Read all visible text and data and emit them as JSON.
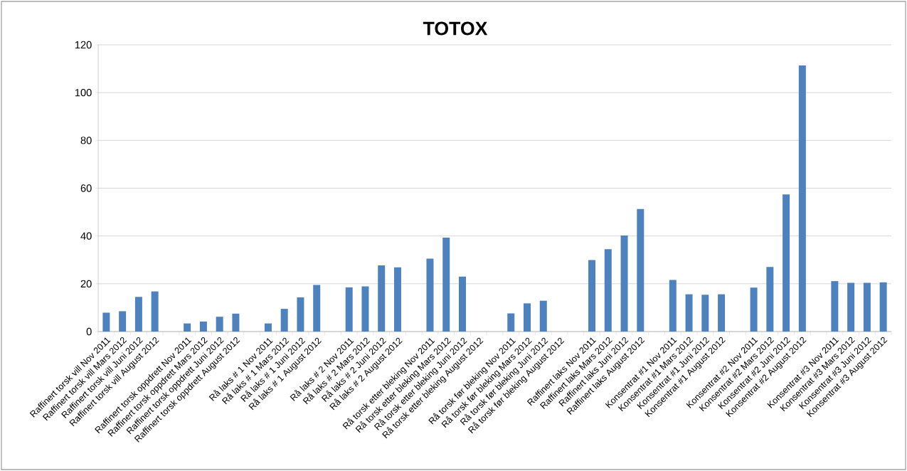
{
  "chart_data": {
    "type": "bar",
    "title": "TOTOX",
    "categories": [
      "Raffinert torsk vill Nov 2011",
      "Raffinert torsk vill Mars 2012",
      "Raffinert torsk vill Juni 2012",
      "Raffinert torsk vill August 2012",
      null,
      "Raffinert torsk oppdrett Nov 2011",
      "Raffinert torsk oppdrett Mars 2012",
      "Raffinert torsk oppdrett Juni 2012",
      "Raffinert torsk oppdrett August 2012",
      null,
      "Rå laks # 1   Nov 2011",
      "Rå laks # 1   Mars 2012",
      "Rå laks # 1   Juni 2012",
      "Rå laks # 1   August 2012",
      null,
      "Rå laks # 2   Nov 2011",
      "Rå laks # 2   Mars 2012",
      "Rå laks # 2   Juni 2012",
      "Rå laks # 2   August 2012",
      null,
      "Rå torsk etter bleking Nov 2011",
      "Rå torsk etter bleking Mars 2012",
      "Rå torsk etter bleking Juni 2012",
      "Rå torsk etter bleking August 2012",
      null,
      "Rå torsk før bleking Nov 2011",
      "Rå torsk før bleking Mars 2012",
      "Rå torsk før bleking Juni 2012",
      "Rå torsk før bleking August 2012",
      null,
      "Raffinert laks Nov 2011",
      "Raffinert laks Mars 2012",
      "Raffinert laks Juni 2012",
      "Raffinert laks August 2012",
      null,
      "Konsentrat #1 Nov 2011",
      "Konsentrat #1 Mars 2012",
      "Konsentrat #1 Juni 2012",
      "Konsentrat #1 August 2012",
      null,
      "Konsentrat #2 Nov 2011",
      "Konsentrat #2 Mars 2012",
      "Konsentrat #2 Juni 2012",
      "Konsentrat #2 August 2012",
      null,
      "Konsentrat #3 Nov 2011",
      "Konsentrat #3 Mars 2012",
      "Konsentrat #3 Juni 2012",
      "Konsentrat #3 August 2012"
    ],
    "values": [
      7.9,
      8.5,
      14.5,
      16.8,
      null,
      3.4,
      4.2,
      6.2,
      7.5,
      null,
      3.4,
      9.5,
      14.3,
      19.5,
      null,
      18.5,
      18.9,
      27.7,
      26.9,
      null,
      30.5,
      39.3,
      23.0,
      null,
      null,
      7.6,
      11.8,
      12.9,
      null,
      null,
      29.9,
      34.5,
      40.2,
      51.3,
      null,
      21.6,
      15.6,
      15.4,
      15.6,
      null,
      18.4,
      27.0,
      57.4,
      111.4,
      null,
      21.1,
      20.4,
      20.4,
      20.6
    ],
    "color": "#4f81bd",
    "ylim": [
      0,
      120
    ],
    "yticks": [
      0,
      20,
      40,
      60,
      80,
      100,
      120
    ],
    "grid": "y"
  }
}
